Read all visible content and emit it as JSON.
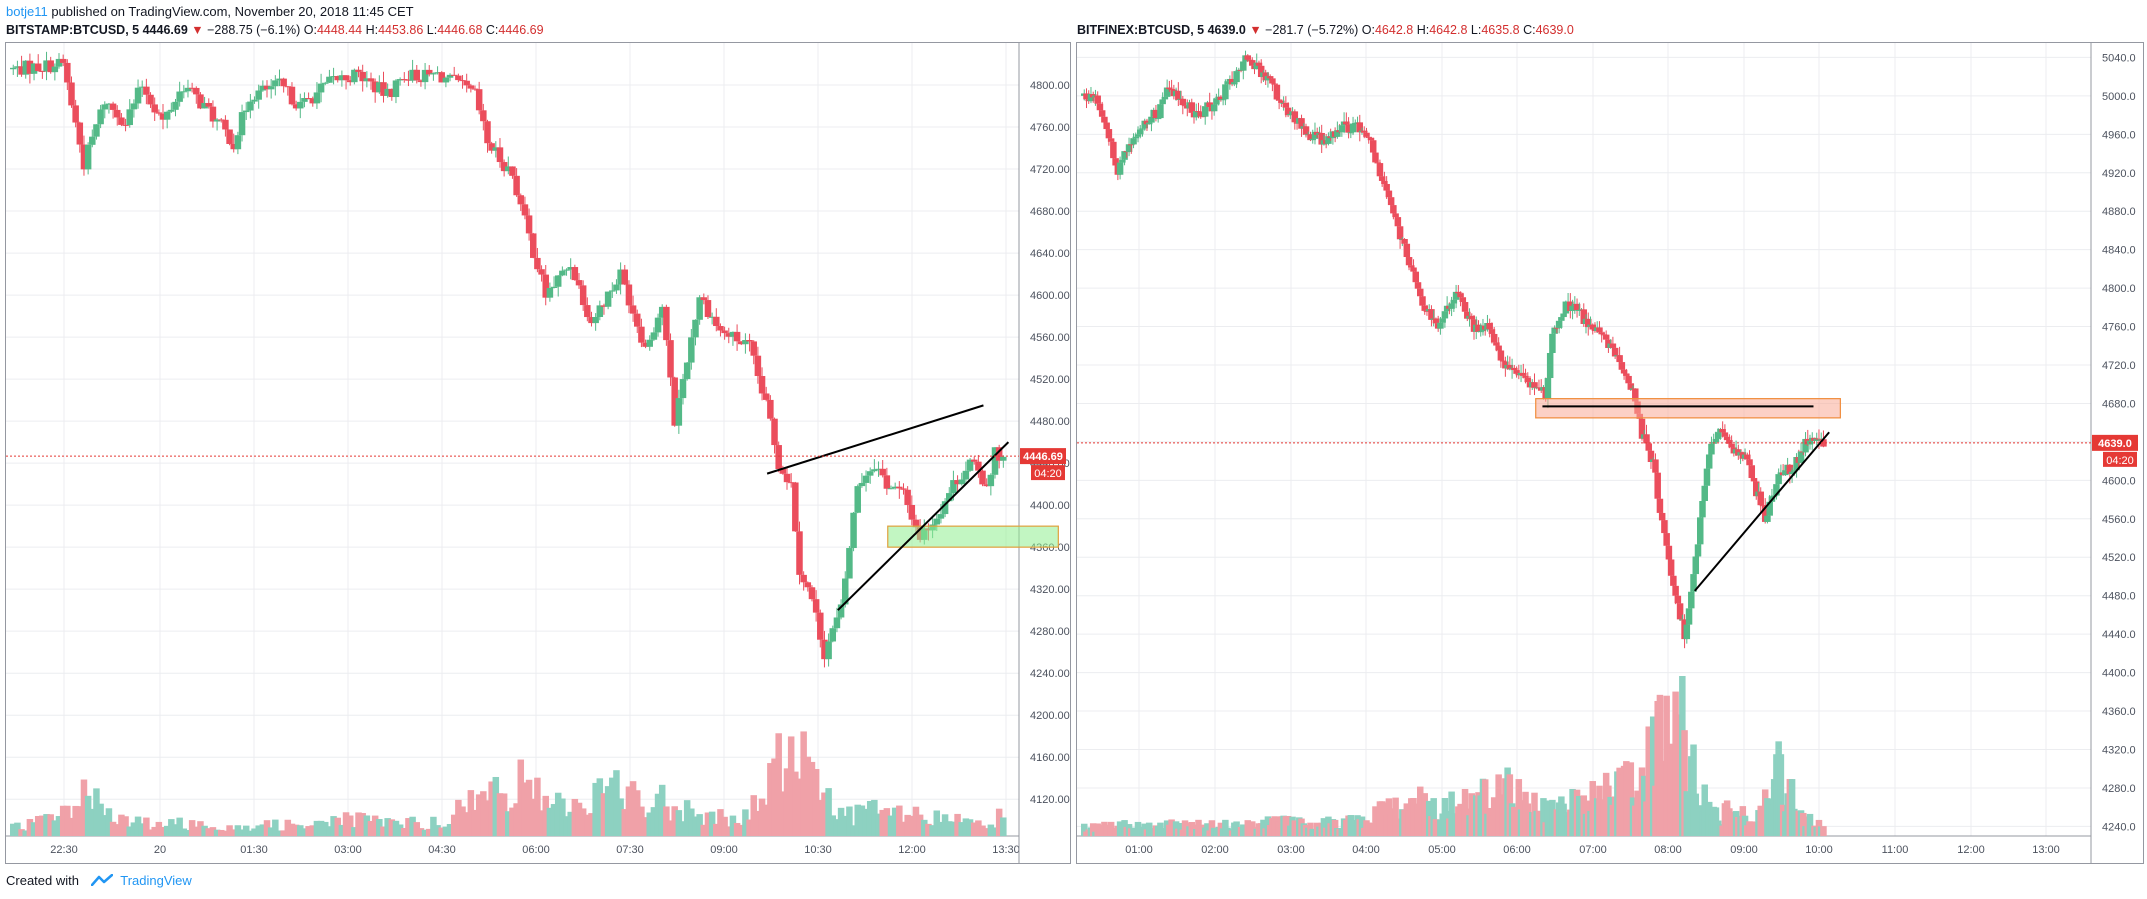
{
  "published": {
    "author": "botje11",
    "text": "published on TradingView.com, November 20, 2018 11:45 CET"
  },
  "footer": {
    "created_with": "Created with",
    "brand": "TradingView",
    "brand_icon": "tradingview-logo-icon"
  },
  "colors": {
    "up": "#53b987",
    "down": "#eb4d5c",
    "vol_up": "#8dd1c1",
    "vol_down": "#f0a1a8",
    "grid": "#ecedf0",
    "price_line": "#e53935"
  },
  "chart_data": [
    {
      "type": "candlestick",
      "symbol": "BITSTAMP:BTCUSD",
      "interval": "5",
      "last": "4446.69",
      "change": "−288.75 (−6.1%)",
      "open": "4448.44",
      "high": "4453.86",
      "low": "4446.68",
      "close": "4446.69",
      "price_label": "4446.69",
      "countdown": "04:20",
      "y_ticks": [
        "4120.00",
        "4160.00",
        "4200.00",
        "4240.00",
        "4280.00",
        "4320.00",
        "4360.00",
        "4400.00",
        "4440.00",
        "4480.00",
        "4520.00",
        "4560.00",
        "4600.00",
        "4640.00",
        "4680.00",
        "4720.00",
        "4760.00",
        "4800.00"
      ],
      "x_ticks": [
        "22:30",
        "20",
        "01:30",
        "03:00",
        "04:30",
        "06:00",
        "07:30",
        "09:00",
        "10:30",
        "12:00",
        "13:30"
      ],
      "ylim": [
        4085,
        4840
      ],
      "path": [
        [
          0,
          4815
        ],
        [
          12,
          4820
        ],
        [
          17,
          4725
        ],
        [
          22,
          4785
        ],
        [
          27,
          4765
        ],
        [
          31,
          4800
        ],
        [
          36,
          4765
        ],
        [
          41,
          4800
        ],
        [
          47,
          4775
        ],
        [
          53,
          4745
        ],
        [
          57,
          4790
        ],
        [
          64,
          4800
        ],
        [
          69,
          4780
        ],
        [
          77,
          4805
        ],
        [
          83,
          4810
        ],
        [
          90,
          4790
        ],
        [
          94,
          4810
        ],
        [
          99,
          4808
        ],
        [
          102,
          4810
        ],
        [
          107,
          4800
        ],
        [
          111,
          4790
        ],
        [
          114,
          4745
        ],
        [
          120,
          4715
        ],
        [
          123,
          4670
        ],
        [
          128,
          4600
        ],
        [
          134,
          4630
        ],
        [
          139,
          4575
        ],
        [
          146,
          4620
        ],
        [
          152,
          4550
        ],
        [
          156,
          4590
        ],
        [
          159,
          4480
        ],
        [
          165,
          4600
        ],
        [
          170,
          4565
        ],
        [
          173,
          4560
        ],
        [
          177,
          4550
        ],
        [
          182,
          4480
        ],
        [
          184,
          4440
        ],
        [
          187,
          4420
        ],
        [
          189,
          4340
        ],
        [
          192,
          4310
        ],
        [
          195,
          4260
        ],
        [
          199,
          4300
        ],
        [
          203,
          4420
        ],
        [
          207,
          4440
        ],
        [
          210,
          4420
        ],
        [
          214,
          4410
        ],
        [
          218,
          4370
        ],
        [
          222,
          4390
        ],
        [
          226,
          4420
        ],
        [
          230,
          4440
        ],
        [
          234,
          4420
        ],
        [
          236,
          4450
        ],
        [
          238,
          4445
        ]
      ],
      "volume_path": [
        [
          0,
          8
        ],
        [
          12,
          22
        ],
        [
          17,
          50
        ],
        [
          25,
          14
        ],
        [
          40,
          12
        ],
        [
          60,
          10
        ],
        [
          80,
          16
        ],
        [
          100,
          12
        ],
        [
          110,
          30
        ],
        [
          120,
          55
        ],
        [
          126,
          40
        ],
        [
          135,
          30
        ],
        [
          145,
          45
        ],
        [
          155,
          35
        ],
        [
          165,
          25
        ],
        [
          175,
          12
        ],
        [
          182,
          55
        ],
        [
          185,
          80
        ],
        [
          187,
          75
        ],
        [
          189,
          85
        ],
        [
          192,
          50
        ],
        [
          196,
          35
        ],
        [
          200,
          22
        ],
        [
          205,
          25
        ],
        [
          215,
          20
        ],
        [
          225,
          15
        ],
        [
          238,
          18
        ]
      ],
      "annotations": {
        "wedge_upper": [
          [
            182,
            4430
          ],
          [
            234,
            4495
          ]
        ],
        "wedge_lower": [
          [
            199,
            4300
          ],
          [
            240,
            4460
          ]
        ],
        "support_zone": [
          [
            211,
            4360
          ],
          [
            252,
            4380
          ]
        ]
      }
    },
    {
      "type": "candlestick",
      "symbol": "BITFINEX:BTCUSD",
      "interval": "5",
      "last": "4639.0",
      "change": "−281.7 (−5.72%)",
      "open": "4642.8",
      "high": "4642.8",
      "low": "4635.8",
      "close": "4639.0",
      "price_label": "4639.0",
      "countdown": "04:20",
      "y_ticks": [
        "4240.0",
        "4280.0",
        "4320.0",
        "4360.0",
        "4400.0",
        "4440.0",
        "4480.0",
        "4520.0",
        "4560.0",
        "4600.0",
        "4640.0",
        "4680.0",
        "4720.0",
        "4760.0",
        "4800.0",
        "4840.0",
        "4880.0",
        "4920.0",
        "4960.0",
        "5000.0",
        "5040.0"
      ],
      "x_ticks": [
        "01:00",
        "02:00",
        "03:00",
        "04:00",
        "05:00",
        "06:00",
        "07:00",
        "08:00",
        "09:00",
        "10:00",
        "11:00",
        "12:00",
        "13:00"
      ],
      "ylim": [
        4230,
        5055
      ],
      "path": [
        [
          0,
          5000
        ],
        [
          5,
          5000
        ],
        [
          10,
          4970
        ],
        [
          15,
          4920
        ],
        [
          20,
          4950
        ],
        [
          28,
          4975
        ],
        [
          34,
          4985
        ],
        [
          38,
          5010
        ],
        [
          43,
          4995
        ],
        [
          50,
          4980
        ],
        [
          58,
          4990
        ],
        [
          64,
          5010
        ],
        [
          72,
          5040
        ],
        [
          77,
          5030
        ],
        [
          83,
          5015
        ],
        [
          88,
          4990
        ],
        [
          94,
          4975
        ],
        [
          101,
          4960
        ],
        [
          107,
          4955
        ],
        [
          114,
          4965
        ],
        [
          121,
          4970
        ],
        [
          129,
          4945
        ],
        [
          137,
          4880
        ],
        [
          145,
          4830
        ],
        [
          152,
          4780
        ],
        [
          159,
          4760
        ],
        [
          166,
          4800
        ],
        [
          174,
          4760
        ],
        [
          180,
          4760
        ],
        [
          186,
          4730
        ],
        [
          192,
          4710
        ],
        [
          198,
          4700
        ],
        [
          206,
          4690
        ],
        [
          209,
          4750
        ],
        [
          214,
          4780
        ],
        [
          219,
          4780
        ],
        [
          224,
          4765
        ],
        [
          228,
          4760
        ],
        [
          234,
          4740
        ],
        [
          239,
          4720
        ],
        [
          244,
          4700
        ],
        [
          249,
          4650
        ],
        [
          254,
          4620
        ],
        [
          257,
          4570
        ],
        [
          259,
          4540
        ],
        [
          262,
          4500
        ],
        [
          265,
          4470
        ],
        [
          268,
          4440
        ],
        [
          272,
          4500
        ],
        [
          276,
          4580
        ],
        [
          280,
          4640
        ],
        [
          285,
          4650
        ],
        [
          289,
          4635
        ],
        [
          296,
          4620
        ],
        [
          300,
          4590
        ],
        [
          304,
          4560
        ],
        [
          310,
          4600
        ],
        [
          314,
          4610
        ],
        [
          318,
          4620
        ],
        [
          322,
          4640
        ],
        [
          325,
          4642
        ],
        [
          330,
          4639
        ]
      ],
      "volume_path": [
        [
          0,
          8
        ],
        [
          30,
          12
        ],
        [
          60,
          10
        ],
        [
          80,
          16
        ],
        [
          100,
          12
        ],
        [
          120,
          14
        ],
        [
          140,
          30
        ],
        [
          150,
          35
        ],
        [
          160,
          28
        ],
        [
          175,
          35
        ],
        [
          190,
          45
        ],
        [
          200,
          30
        ],
        [
          210,
          25
        ],
        [
          220,
          35
        ],
        [
          240,
          45
        ],
        [
          248,
          60
        ],
        [
          252,
          80
        ],
        [
          258,
          100
        ],
        [
          262,
          120
        ],
        [
          266,
          115
        ],
        [
          270,
          90
        ],
        [
          274,
          50
        ],
        [
          280,
          20
        ],
        [
          290,
          25
        ],
        [
          300,
          12
        ],
        [
          310,
          70
        ],
        [
          320,
          18
        ],
        [
          330,
          10
        ]
      ],
      "annotations": {
        "resistance_line": [
          [
            206,
            4677
          ],
          [
            327,
            4677
          ]
        ],
        "resistance_zone": [
          [
            203,
            4665
          ],
          [
            339,
            4685
          ]
        ],
        "rising_trendline": [
          [
            274,
            4485
          ],
          [
            334,
            4650
          ]
        ]
      }
    }
  ]
}
